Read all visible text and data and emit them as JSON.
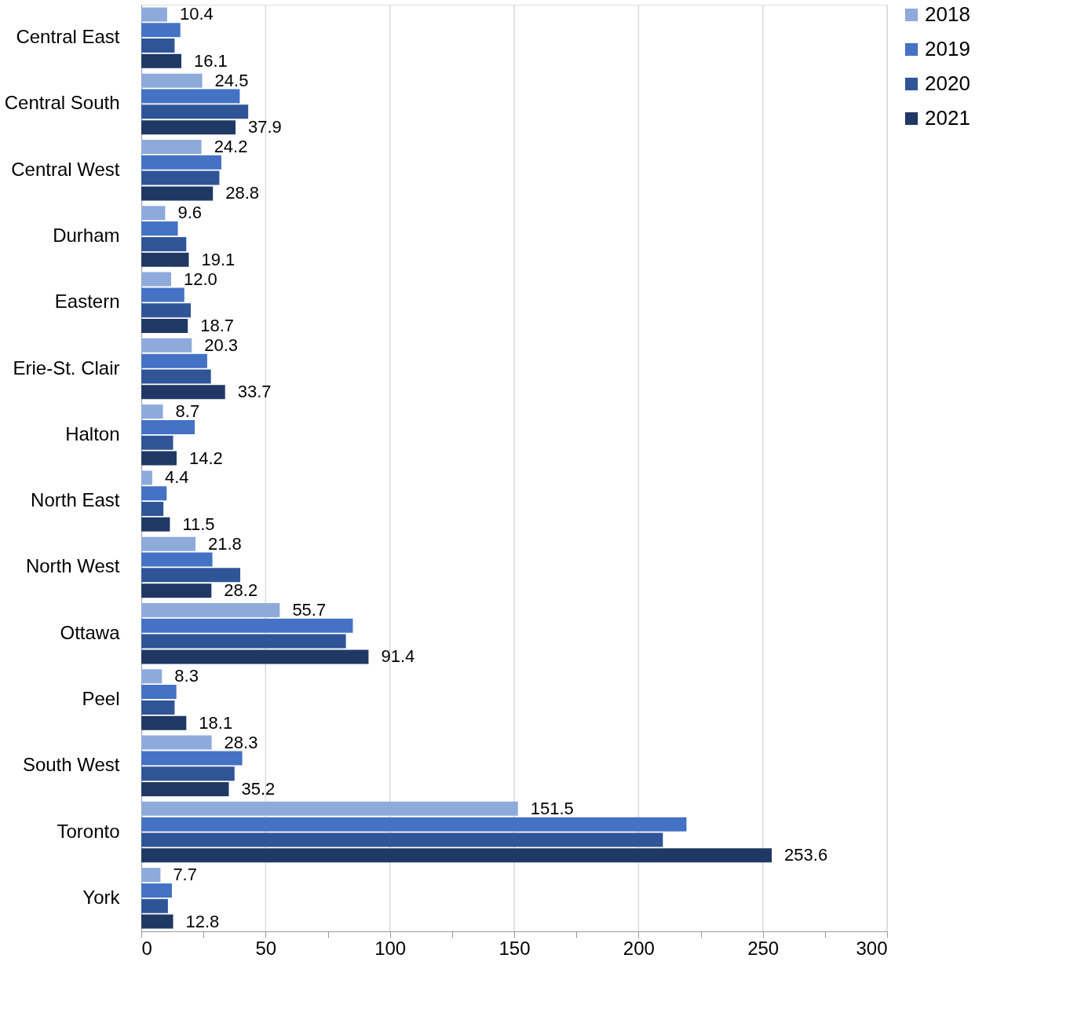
{
  "chart_data": {
    "type": "bar",
    "orientation": "horizontal",
    "categories": [
      "Central East",
      "Central South",
      "Central West",
      "Durham",
      "Eastern",
      "Erie-St. Clair",
      "Halton",
      "North East",
      "North West",
      "Ottawa",
      "Peel",
      "South West",
      "Toronto",
      "York"
    ],
    "series": [
      {
        "name": "2018",
        "color": "#8eaadb",
        "values": [
          10.4,
          24.5,
          24.2,
          9.6,
          12.0,
          20.3,
          8.7,
          4.4,
          21.8,
          55.7,
          8.3,
          28.3,
          151.5,
          7.7
        ],
        "value_labels": [
          "10.4",
          "24.5",
          "24.2",
          "9.6",
          "12.0",
          "20.3",
          "8.7",
          "4.4",
          "21.8",
          "55.7",
          "8.3",
          "28.3",
          "151.5",
          "7.7"
        ]
      },
      {
        "name": "2019",
        "color": "#4472c4",
        "values": [
          15.7,
          39.6,
          32.2,
          14.7,
          17.3,
          26.5,
          21.5,
          10.2,
          28.6,
          85.1,
          14.1,
          40.6,
          219.3,
          12.3
        ]
      },
      {
        "name": "2020",
        "color": "#2f5597",
        "values": [
          13.4,
          43.0,
          31.4,
          18.1,
          19.9,
          28.0,
          12.8,
          8.9,
          39.8,
          82.3,
          13.4,
          37.5,
          209.8,
          10.7
        ]
      },
      {
        "name": "2021",
        "color": "#203864",
        "values": [
          16.1,
          37.9,
          28.8,
          19.1,
          18.7,
          33.7,
          14.2,
          11.5,
          28.2,
          91.4,
          18.1,
          35.2,
          253.6,
          12.8
        ],
        "value_labels": [
          "16.1",
          "37.9",
          "28.8",
          "19.1",
          "18.7",
          "33.7",
          "14.2",
          "11.5",
          "28.2",
          "91.4",
          "18.1",
          "35.2",
          "253.6",
          "12.8"
        ]
      }
    ],
    "xlim": [
      0,
      300
    ],
    "xticks": [
      0,
      {
        "value": 25,
        "label": null
      },
      50,
      {
        "value": 75,
        "label": null
      },
      100,
      {
        "value": 125,
        "label": null
      },
      150,
      {
        "value": 175,
        "label": null
      },
      200,
      {
        "value": 225,
        "label": null
      },
      250,
      {
        "value": 275,
        "label": null
      },
      300
    ],
    "grid": "x",
    "legend": "right"
  }
}
